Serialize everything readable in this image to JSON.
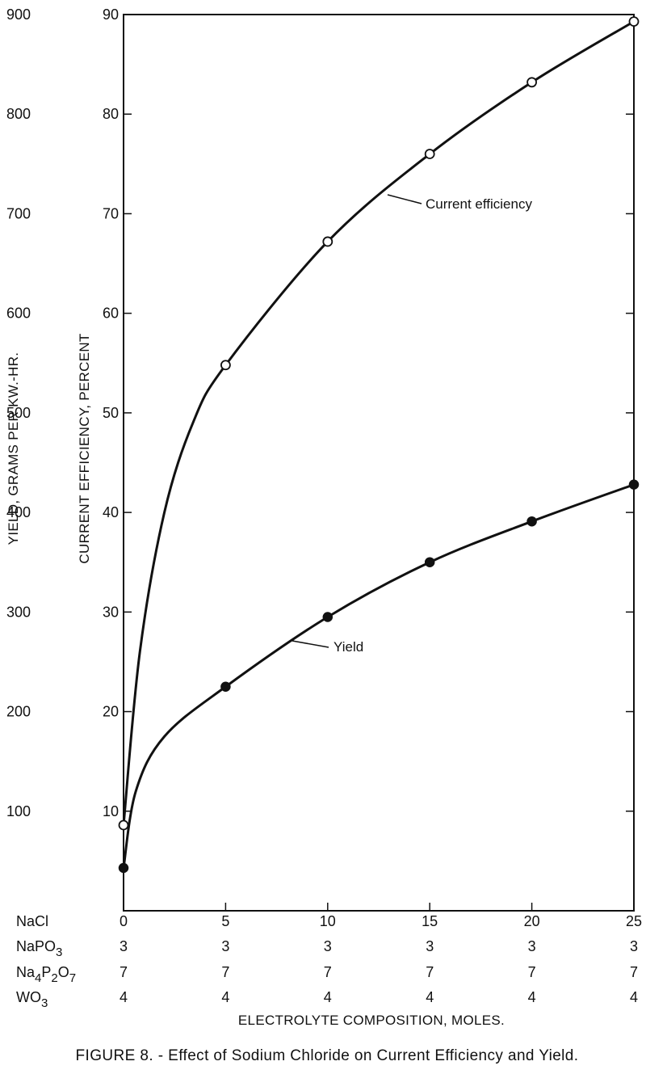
{
  "chart_data": {
    "type": "line",
    "title": "",
    "caption": "FIGURE 8. - Effect of Sodium Chloride on Current Efficiency and Yield.",
    "xlabel": "ELECTROLYTE COMPOSITION, MOLES.",
    "ylabel_left": "YIELD, GRAMS PER KW.-HR.",
    "ylabel_inner": "CURRENT EFFICIENCY, PERCENT",
    "xlim": [
      0,
      25
    ],
    "ylim_yield": [
      0,
      900
    ],
    "ylim_efficiency": [
      0,
      90
    ],
    "yield_ticks": [
      "100",
      "200",
      "300",
      "400",
      "500",
      "600",
      "700",
      "800",
      "900"
    ],
    "efficiency_ticks": [
      "10",
      "20",
      "30",
      "40",
      "50",
      "60",
      "70",
      "80",
      "90"
    ],
    "grid": false,
    "composition_rows": [
      {
        "label": "NaCl",
        "label_main": "NaCl",
        "sub1": "",
        "mid": "",
        "sub2": "",
        "values": [
          "0",
          "5",
          "10",
          "15",
          "20",
          "25"
        ]
      },
      {
        "label": "NaPO3",
        "label_main": "NaPO",
        "sub1": "3",
        "mid": "",
        "sub2": "",
        "values": [
          "3",
          "3",
          "3",
          "3",
          "3",
          "3"
        ]
      },
      {
        "label": "Na4P2O7",
        "label_main": "Na",
        "sub1": "4",
        "mid": "P",
        "sub2": "2",
        "tail": "O",
        "sub3": "7",
        "values": [
          "7",
          "7",
          "7",
          "7",
          "7",
          "7"
        ]
      },
      {
        "label": "WO3",
        "label_main": "WO",
        "sub1": "3",
        "mid": "",
        "sub2": "",
        "values": [
          "4",
          "4",
          "4",
          "4",
          "4",
          "4"
        ]
      }
    ],
    "series": [
      {
        "name": "Current efficiency",
        "axis": "efficiency",
        "marker": "open-circle",
        "x": [
          0,
          5,
          10,
          15,
          20,
          25
        ],
        "y": [
          8.6,
          54.8,
          67.2,
          76.0,
          83.2,
          89.3
        ]
      },
      {
        "name": "Yield",
        "axis": "yield",
        "marker": "filled-circle",
        "x": [
          0,
          5,
          10,
          15,
          20,
          25
        ],
        "y": [
          43,
          225,
          295,
          350,
          391,
          428
        ]
      }
    ]
  }
}
